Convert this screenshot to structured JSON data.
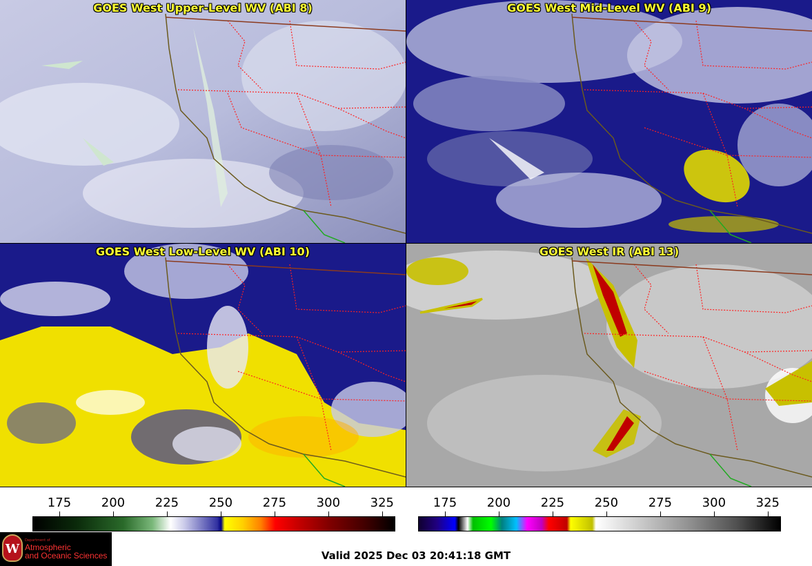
{
  "panels": [
    {
      "title": "GOES West Upper-Level WV (ABI 8)"
    },
    {
      "title": "GOES West Mid-Level WV (ABI 9)"
    },
    {
      "title": "GOES West Low-Level WV (ABI 10)"
    },
    {
      "title": "GOES West IR (ABI 13)"
    }
  ],
  "colorbar_left": {
    "ticks": [
      "175",
      "200",
      "225",
      "250",
      "275",
      "300",
      "325"
    ],
    "values": [
      175,
      200,
      225,
      250,
      275,
      300,
      325
    ]
  },
  "colorbar_right": {
    "ticks": [
      "175",
      "200",
      "225",
      "250",
      "275",
      "300",
      "325"
    ],
    "values": [
      175,
      200,
      225,
      250,
      275,
      300,
      325
    ]
  },
  "logo": {
    "line1": "Department of",
    "line2": "Atmospheric",
    "line3": "and Oceanic Sciences",
    "seal": "W"
  },
  "valid": "Valid 2025 Dec 03 20:41:18 GMT",
  "colors": {
    "title": "#ffff33",
    "state_border": "#ff2020",
    "coast": "#6b5a1e",
    "mexico": "#22aa22"
  }
}
